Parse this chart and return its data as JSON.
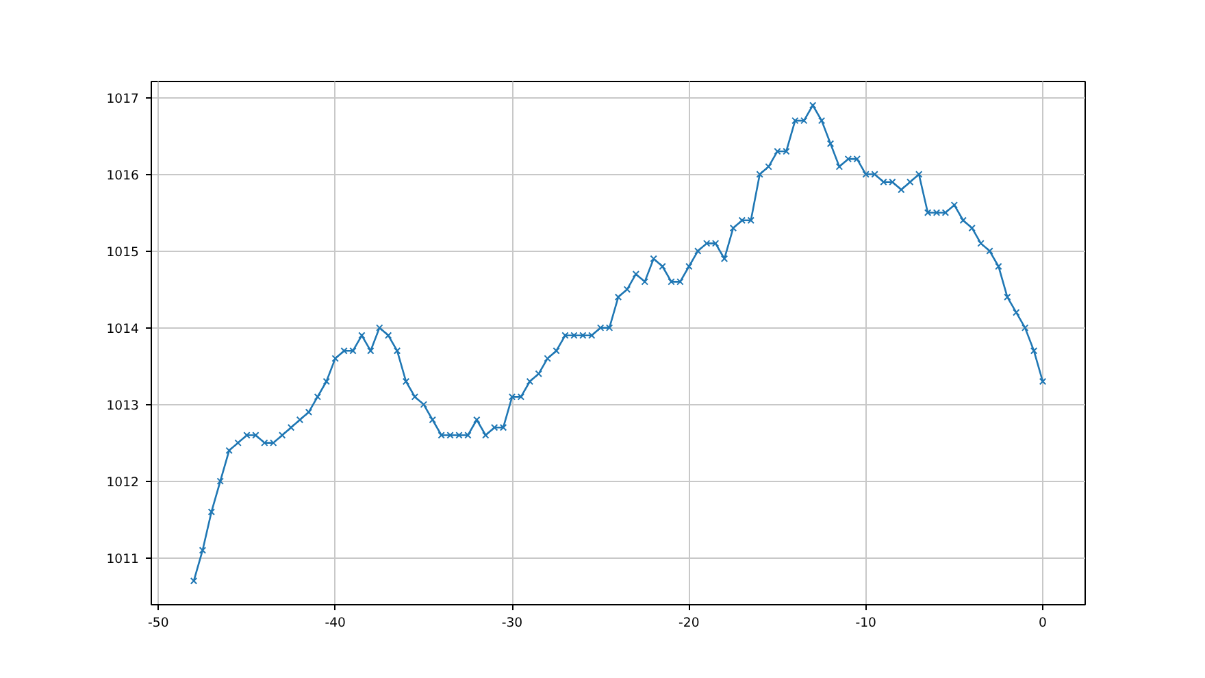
{
  "chart_data": {
    "type": "line",
    "marker": "cross",
    "grid": true,
    "x": [
      -48,
      -47.5,
      -47,
      -46.5,
      -46,
      -45.5,
      -45,
      -44.5,
      -44,
      -43.5,
      -43,
      -42.5,
      -42,
      -41.5,
      -41,
      -40.5,
      -40,
      -39.5,
      -39,
      -38.5,
      -38,
      -37.5,
      -37,
      -36.5,
      -36,
      -35.5,
      -35,
      -34.5,
      -34,
      -33.5,
      -33,
      -32.5,
      -32,
      -31.5,
      -31,
      -30.5,
      -30,
      -29.5,
      -29,
      -28.5,
      -28,
      -27.5,
      -27,
      -26.5,
      -26,
      -25.5,
      -25,
      -24.5,
      -24,
      -23.5,
      -23,
      -22.5,
      -22,
      -21.5,
      -21,
      -20.5,
      -20,
      -19.5,
      -19,
      -18.5,
      -18,
      -17.5,
      -17,
      -16.5,
      -16,
      -15.5,
      -15,
      -14.5,
      -14,
      -13.5,
      -13,
      -12.5,
      -12,
      -11.5,
      -11,
      -10.5,
      -10,
      -9.5,
      -9,
      -8.5,
      -8,
      -7.5,
      -7,
      -6.5,
      -6,
      -5.5,
      -5,
      -4.5,
      -4,
      -3.5,
      -3,
      -2.5,
      -2,
      -1.5,
      -1,
      -0.5,
      0
    ],
    "series": [
      {
        "color": "#1f77b4",
        "values": [
          1010.7,
          1011.1,
          1011.6,
          1012.0,
          1012.4,
          1012.5,
          1012.6,
          1012.6,
          1012.5,
          1012.5,
          1012.6,
          1012.7,
          1012.8,
          1012.9,
          1013.1,
          1013.3,
          1013.6,
          1013.7,
          1013.7,
          1013.9,
          1013.7,
          1014.0,
          1013.9,
          1013.7,
          1013.3,
          1013.1,
          1013.0,
          1012.8,
          1012.6,
          1012.6,
          1012.6,
          1012.6,
          1012.8,
          1012.6,
          1012.7,
          1012.7,
          1013.1,
          1013.1,
          1013.3,
          1013.4,
          1013.6,
          1013.7,
          1013.9,
          1013.9,
          1013.9,
          1013.9,
          1014.0,
          1014.0,
          1014.4,
          1014.5,
          1014.7,
          1014.6,
          1014.9,
          1014.8,
          1014.6,
          1014.6,
          1014.8,
          1015.0,
          1015.1,
          1015.1,
          1014.9,
          1015.3,
          1015.4,
          1015.4,
          1016.0,
          1016.1,
          1016.3,
          1016.3,
          1016.7,
          1016.7,
          1016.9,
          1016.7,
          1016.4,
          1016.1,
          1016.2,
          1016.2,
          1016.0,
          1016.0,
          1015.9,
          1015.9,
          1015.8,
          1015.9,
          1016.0,
          1015.5,
          1015.5,
          1015.5,
          1015.6,
          1015.4,
          1015.3,
          1015.1,
          1015.0,
          1014.8,
          1014.4,
          1014.2,
          1014.0,
          1013.7,
          1013.3
        ]
      }
    ],
    "xlim": [
      -50.4,
      2.4
    ],
    "ylim": [
      1010.39,
      1017.21
    ],
    "xticks": [
      -50,
      -40,
      -30,
      -20,
      -10,
      0
    ],
    "yticks": [
      1011,
      1012,
      1013,
      1014,
      1015,
      1016,
      1017
    ]
  }
}
